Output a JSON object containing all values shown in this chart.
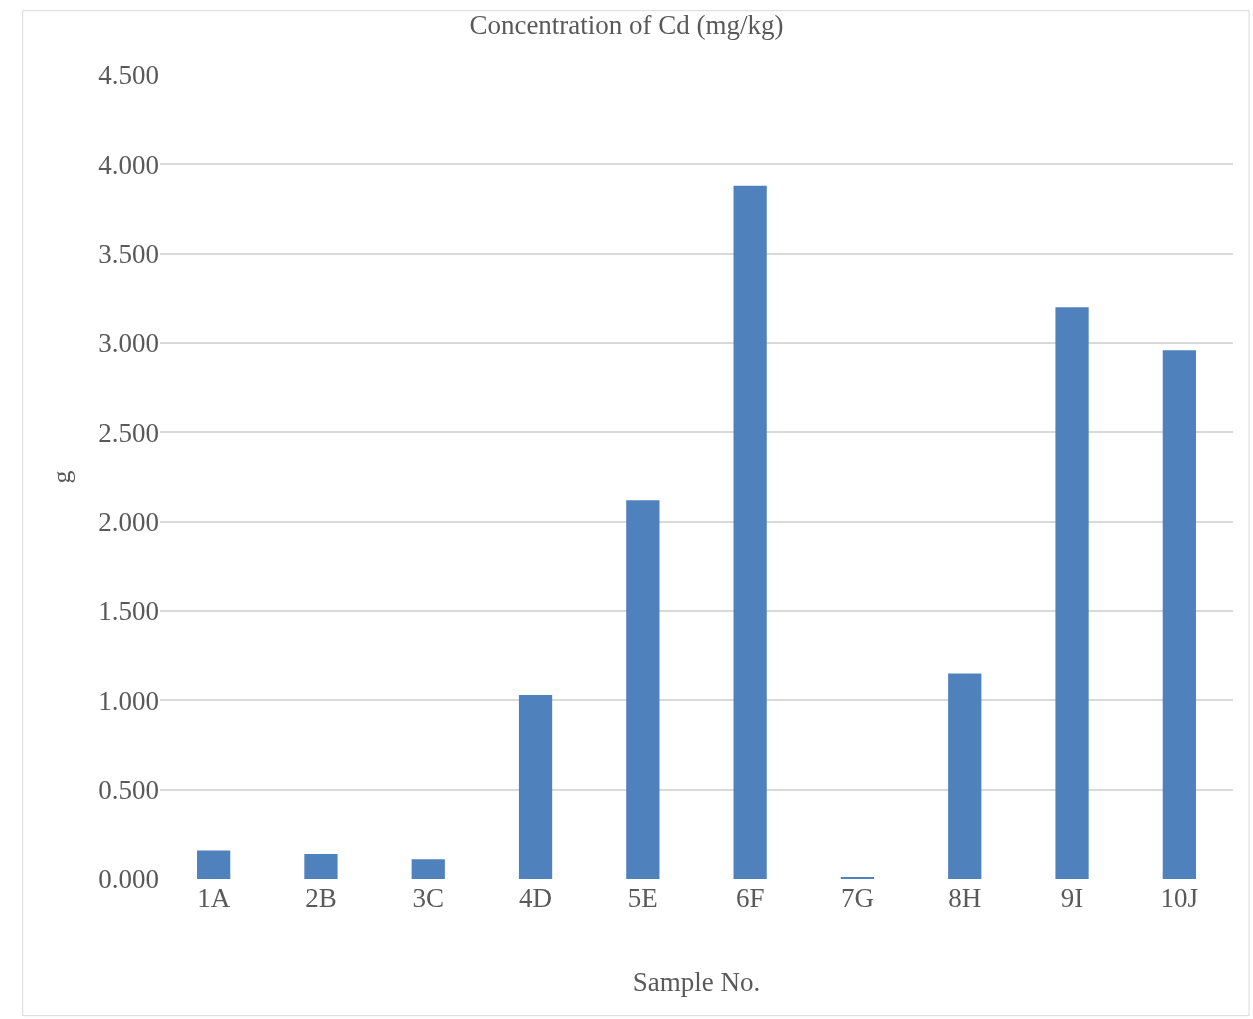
{
  "chart_data": {
    "type": "bar",
    "title": "Concentration of Cd (mg/kg)",
    "xlabel": "Sample No.",
    "ylabel": "g",
    "categories": [
      "1A",
      "2B",
      "3C",
      "4D",
      "5E",
      "6F",
      "7G",
      "8H",
      "9I",
      "10J"
    ],
    "values": [
      0.16,
      0.14,
      0.11,
      1.03,
      2.12,
      3.88,
      0.01,
      1.15,
      3.2,
      2.96
    ],
    "color": "#4f81bd",
    "ylim": [
      0,
      4.5
    ],
    "yticks": [
      {
        "value": 0,
        "label": "0.000"
      },
      {
        "value": 0.5,
        "label": "0.500"
      },
      {
        "value": 1,
        "label": "1.000"
      },
      {
        "value": 1.5,
        "label": "1.500"
      },
      {
        "value": 2,
        "label": "2.000"
      },
      {
        "value": 2.5,
        "label": "2.500"
      },
      {
        "value": 3,
        "label": "3.000"
      },
      {
        "value": 3.5,
        "label": "3.500"
      },
      {
        "value": 4,
        "label": "4.000"
      },
      {
        "value": 4.5,
        "label": "4.500"
      }
    ],
    "grid": "y"
  }
}
